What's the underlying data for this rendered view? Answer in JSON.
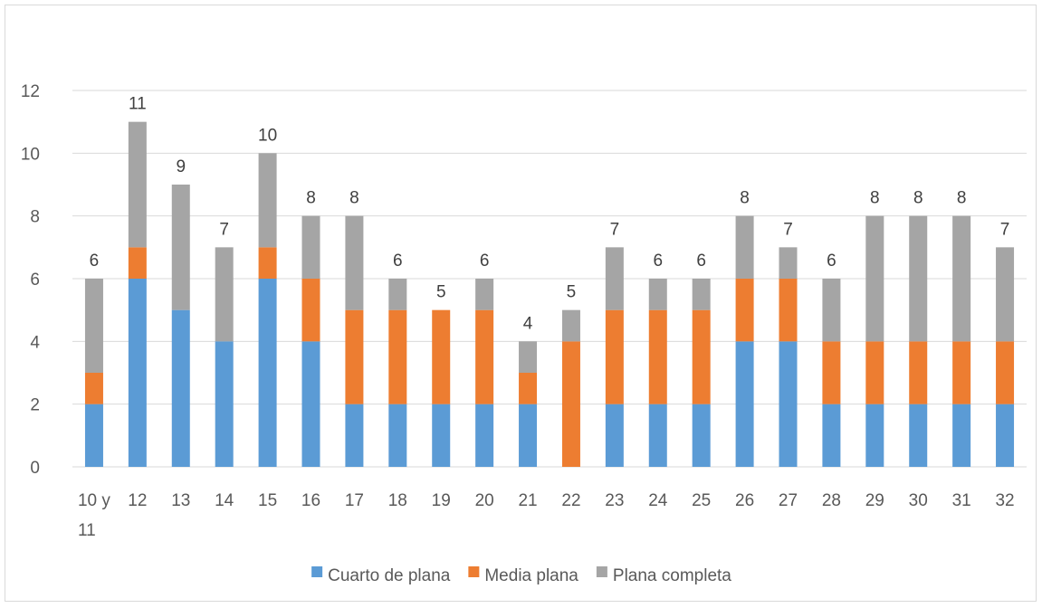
{
  "chart_data": {
    "type": "bar",
    "stacked": true,
    "categories": [
      "10 y 11",
      "12",
      "13",
      "14",
      "15",
      "16",
      "17",
      "18",
      "19",
      "20",
      "21",
      "22",
      "23",
      "24",
      "25",
      "26",
      "27",
      "28",
      "29",
      "30",
      "31",
      "32"
    ],
    "series": [
      {
        "name": "Cuarto de plana",
        "color": "#5b9bd5",
        "values": [
          2,
          6,
          5,
          4,
          6,
          4,
          2,
          2,
          2,
          2,
          2,
          0,
          2,
          2,
          2,
          4,
          4,
          2,
          2,
          2,
          2,
          2
        ]
      },
      {
        "name": "Media plana",
        "color": "#ed7d31",
        "values": [
          1,
          1,
          0,
          0,
          1,
          2,
          3,
          3,
          3,
          3,
          1,
          4,
          3,
          3,
          3,
          2,
          2,
          2,
          2,
          2,
          2,
          2
        ]
      },
      {
        "name": "Plana completa",
        "color": "#a5a5a5",
        "values": [
          3,
          4,
          4,
          3,
          3,
          2,
          3,
          1,
          0,
          1,
          1,
          1,
          2,
          1,
          1,
          2,
          1,
          2,
          4,
          4,
          4,
          3
        ]
      }
    ],
    "totals": [
      6,
      11,
      9,
      7,
      10,
      8,
      8,
      6,
      5,
      6,
      4,
      5,
      7,
      6,
      6,
      8,
      7,
      6,
      8,
      8,
      8,
      7
    ],
    "yticks": [
      0,
      2,
      4,
      6,
      8,
      10,
      12
    ],
    "ylim": [
      0,
      12
    ],
    "title": "",
    "xlabel": "",
    "ylabel": "",
    "grid": true,
    "legend_position": "bottom"
  }
}
